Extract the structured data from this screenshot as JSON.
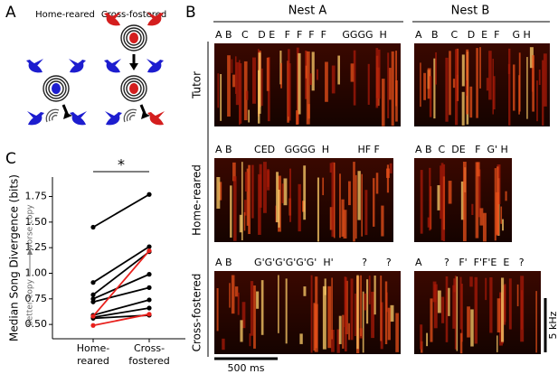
{
  "panel_labels": [
    "A",
    "B",
    "C"
  ],
  "panel_a": {
    "home_reared": "Home-reared",
    "cross_fostered": "Cross-fostered"
  },
  "panel_b": {
    "nests": [
      "Nest A",
      "Nest B"
    ],
    "rows": [
      "Tutor",
      "Home-reared",
      "Cross-fostered"
    ],
    "syllables": [
      [
        "A B   C   D E   F  F  F  F     GGGG  H",
        "A   B    C   D  E  F    G H"
      ],
      [
        "A B       CED   GGGG  H         HF F",
        "A B  C  DE   F  G' H"
      ],
      [
        "A B       G'G'G'G'G'G'  H'         ?      ?",
        "A       ?   F'  F'F'E  E   ?"
      ]
    ],
    "time_scale": "500 ms",
    "freq_scale": "5 kHz"
  },
  "chart_data": {
    "type": "line",
    "ylabel": "Median Song Divergence (bits)",
    "annotations": {
      "significance": "*",
      "better": "better copy",
      "worse": "worse copy"
    },
    "categories": [
      "Home-\nreared",
      "Cross-\nfostered"
    ],
    "series": [
      {
        "color": "#000000",
        "values": [
          1.45,
          1.77
        ]
      },
      {
        "color": "#000000",
        "values": [
          0.91,
          1.26
        ]
      },
      {
        "color": "#000000",
        "values": [
          0.79,
          1.21
        ]
      },
      {
        "color": "#000000",
        "values": [
          0.75,
          0.99
        ]
      },
      {
        "color": "#000000",
        "values": [
          0.72,
          0.86
        ]
      },
      {
        "color": "#000000",
        "values": [
          0.59,
          0.74
        ]
      },
      {
        "color": "#000000",
        "values": [
          0.57,
          0.66
        ]
      },
      {
        "color": "#000000",
        "values": [
          0.56,
          0.59
        ]
      },
      {
        "color": "#e8201c",
        "values": [
          0.58,
          1.22
        ]
      },
      {
        "color": "#e8201c",
        "values": [
          0.49,
          0.6
        ]
      }
    ],
    "ylim": [
      0.36,
      1.94
    ],
    "yticks": [
      {
        "value": 0.5,
        "label": "0.50"
      },
      {
        "value": 0.75,
        "label": "0.75"
      },
      {
        "value": 1.0,
        "label": "1.00"
      },
      {
        "value": 1.25,
        "label": "1.25"
      },
      {
        "value": 1.5,
        "label": "1.50"
      },
      {
        "value": 1.75,
        "label": "1.75"
      }
    ]
  }
}
